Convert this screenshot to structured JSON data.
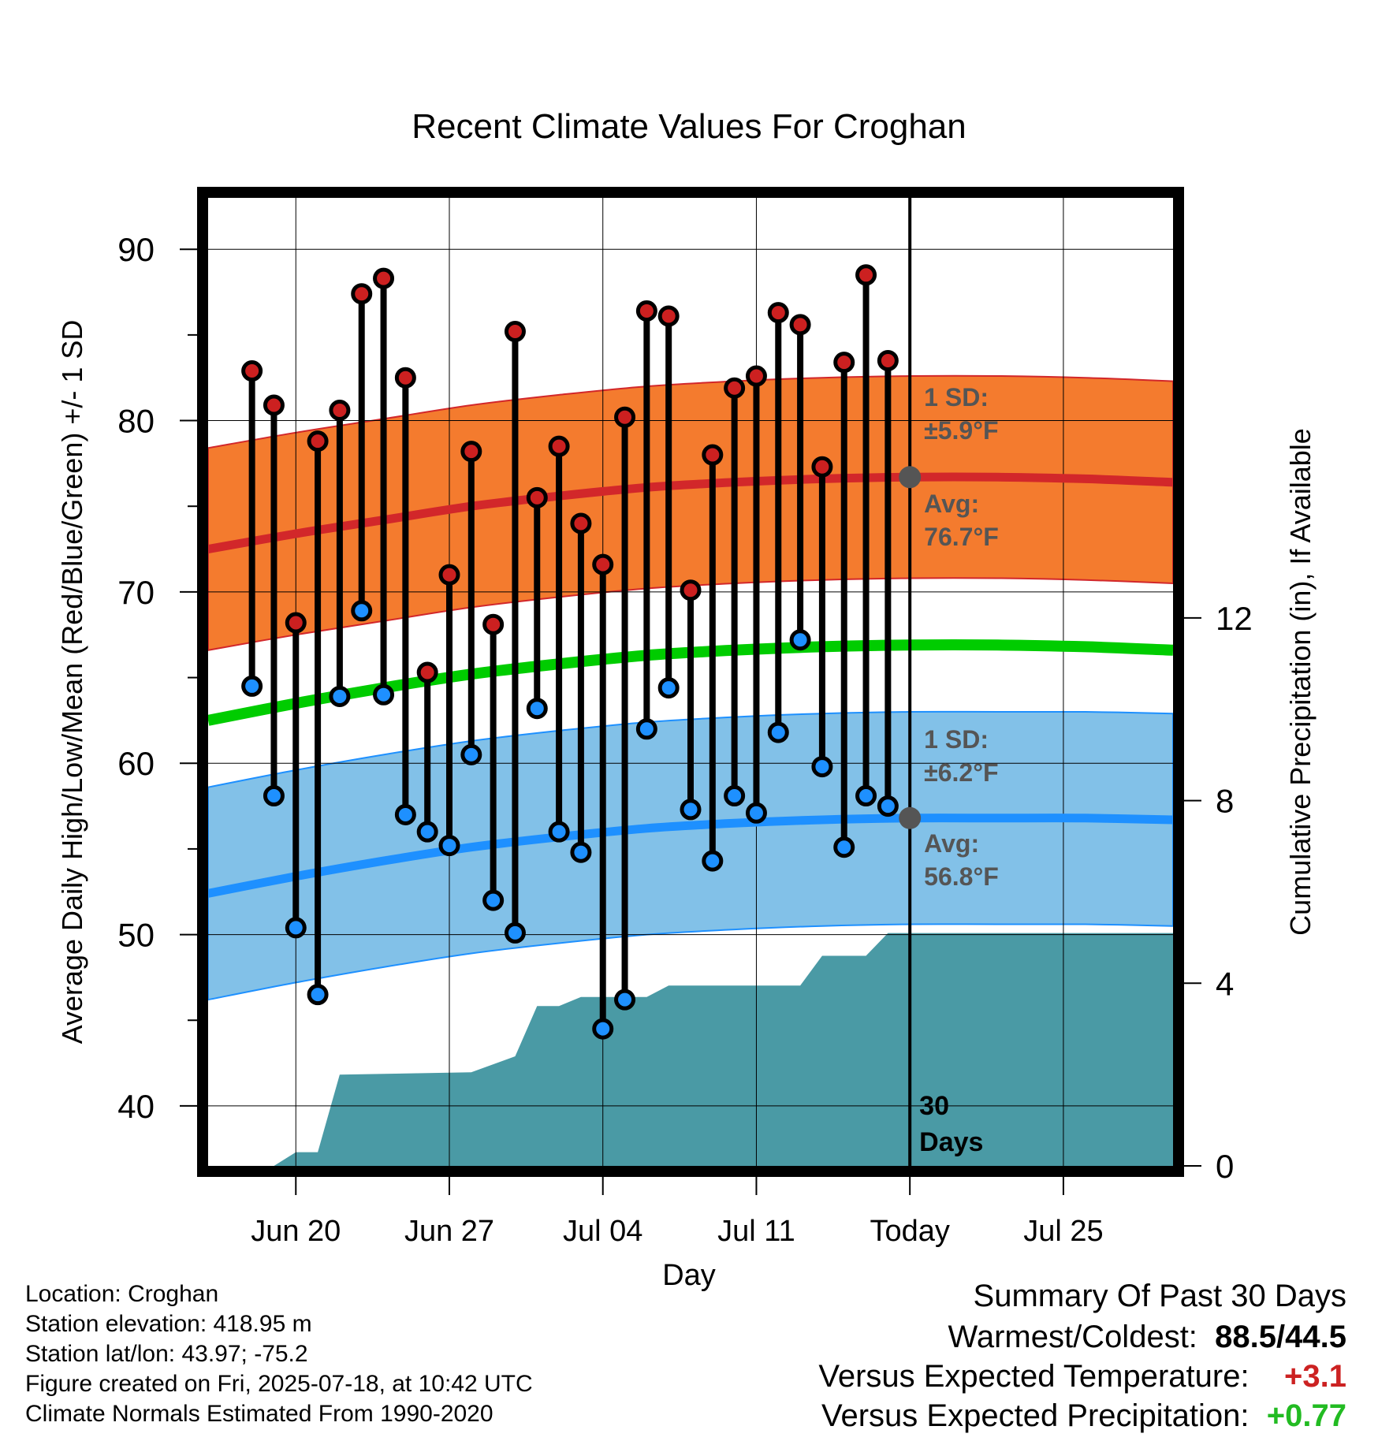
{
  "chart_data": {
    "type": "line",
    "title": "Recent Climate Values For Croghan",
    "xlabel": "Day",
    "ylabel": "Average Daily High/Low/Mean (Red/Blue/Green) +/- 1 SD",
    "y2label": "Cumulative Precipitation (in), If Available",
    "ylim": [
      36.5,
      93
    ],
    "y2lim": [
      0,
      21.2
    ],
    "yticks": [
      40,
      50,
      60,
      70,
      80,
      90
    ],
    "y2ticks": [
      0,
      4,
      8,
      12
    ],
    "xlim": [
      "2025-06-16",
      "2025-07-30"
    ],
    "xticks": [
      {
        "date": "2025-06-20",
        "label": "Jun 20"
      },
      {
        "date": "2025-06-27",
        "label": "Jun 27"
      },
      {
        "date": "2025-07-04",
        "label": "Jul 04"
      },
      {
        "date": "2025-07-11",
        "label": "Jul 11"
      },
      {
        "date": "2025-07-18",
        "label": "Today"
      },
      {
        "date": "2025-07-25",
        "label": "Jul 25"
      }
    ],
    "grid": true,
    "dates": [
      "2025-06-18",
      "2025-06-19",
      "2025-06-20",
      "2025-06-21",
      "2025-06-22",
      "2025-06-23",
      "2025-06-24",
      "2025-06-25",
      "2025-06-26",
      "2025-06-27",
      "2025-06-28",
      "2025-06-29",
      "2025-06-30",
      "2025-07-01",
      "2025-07-02",
      "2025-07-03",
      "2025-07-04",
      "2025-07-05",
      "2025-07-06",
      "2025-07-07",
      "2025-07-08",
      "2025-07-09",
      "2025-07-10",
      "2025-07-11",
      "2025-07-12",
      "2025-07-13",
      "2025-07-14",
      "2025-07-15",
      "2025-07-16",
      "2025-07-17"
    ],
    "daily_high": [
      82.9,
      80.9,
      68.2,
      78.8,
      80.6,
      87.4,
      88.3,
      82.5,
      65.3,
      71.0,
      78.2,
      68.1,
      85.2,
      75.5,
      78.5,
      74.0,
      71.6,
      80.2,
      86.4,
      86.1,
      70.1,
      78.0,
      81.9,
      82.6,
      86.3,
      85.6,
      77.3,
      83.4,
      88.5,
      83.5
    ],
    "daily_low": [
      64.5,
      58.1,
      50.4,
      46.5,
      63.9,
      68.9,
      64.0,
      57.0,
      56.0,
      55.2,
      60.5,
      52.0,
      50.1,
      63.2,
      56.0,
      54.8,
      44.5,
      46.2,
      62.0,
      64.4,
      57.3,
      54.3,
      58.1,
      57.1,
      61.8,
      67.2,
      59.8,
      55.1,
      58.1,
      57.5
    ],
    "normals": {
      "dates": [
        "2025-06-16",
        "2025-06-20",
        "2025-06-24",
        "2025-06-28",
        "2025-07-02",
        "2025-07-06",
        "2025-07-10",
        "2025-07-14",
        "2025-07-18",
        "2025-07-22",
        "2025-07-26",
        "2025-07-30"
      ],
      "high_avg": [
        72.5,
        73.4,
        74.2,
        75.0,
        75.6,
        76.1,
        76.4,
        76.6,
        76.7,
        76.7,
        76.6,
        76.4
      ],
      "high_sd": 5.9,
      "low_avg": [
        52.4,
        53.4,
        54.3,
        55.1,
        55.7,
        56.2,
        56.5,
        56.7,
        56.8,
        56.8,
        56.8,
        56.7
      ],
      "low_sd": 6.2,
      "mean_avg": [
        62.5,
        63.5,
        64.4,
        65.2,
        65.8,
        66.3,
        66.6,
        66.8,
        66.9,
        66.9,
        66.8,
        66.6
      ]
    },
    "precip": {
      "dates": [
        "2025-06-19",
        "2025-06-20",
        "2025-06-21",
        "2025-06-22",
        "2025-06-28",
        "2025-06-30",
        "2025-07-01",
        "2025-07-02",
        "2025-07-03",
        "2025-07-06",
        "2025-07-07",
        "2025-07-13",
        "2025-07-14",
        "2025-07-16",
        "2025-07-17",
        "2025-07-30"
      ],
      "cumulative": [
        0.0,
        0.3,
        0.3,
        2.0,
        2.05,
        2.4,
        3.5,
        3.5,
        3.7,
        3.7,
        3.95,
        3.95,
        4.6,
        4.6,
        5.1,
        5.1
      ]
    },
    "annotations": {
      "high_sd": [
        "1 SD:",
        "±5.9°F"
      ],
      "high_avg": [
        "Avg:",
        "76.7°F"
      ],
      "low_sd": [
        "1 SD:",
        "±6.2°F"
      ],
      "low_avg": [
        "Avg:",
        "56.8°F"
      ],
      "window": [
        "30",
        "Days"
      ]
    },
    "colors": {
      "high_band": "#f47b2e",
      "high_line": "#d2272a",
      "low_band": "#82c1e8",
      "low_line": "#1e90ff",
      "mean_line": "#00cc00",
      "precip": "#4a9aa5",
      "high_dot": "#cc2020",
      "low_dot": "#1e90ff",
      "annot": "#555555"
    }
  },
  "meta": {
    "location": "Location: Croghan",
    "elevation": "Station elevation: 418.95 m",
    "latlon": "Station lat/lon: 43.97; -75.2",
    "created": "Figure created on Fri, 2025-07-18, at 10:42 UTC",
    "normals": "Climate Normals Estimated From 1990-2020"
  },
  "summary": {
    "heading": "Summary Of Past 30 Days",
    "warm_cold_label": "Warmest/Coldest:",
    "warm_value": "88.5",
    "slash": "/",
    "cold_value": "44.5",
    "temp_label": "Versus Expected Temperature:",
    "temp_value": "+3.1",
    "temp_color": "#cc2222",
    "precip_label": "Versus Expected Precipitation:",
    "precip_value": "+0.77",
    "precip_color": "#22bb22"
  }
}
